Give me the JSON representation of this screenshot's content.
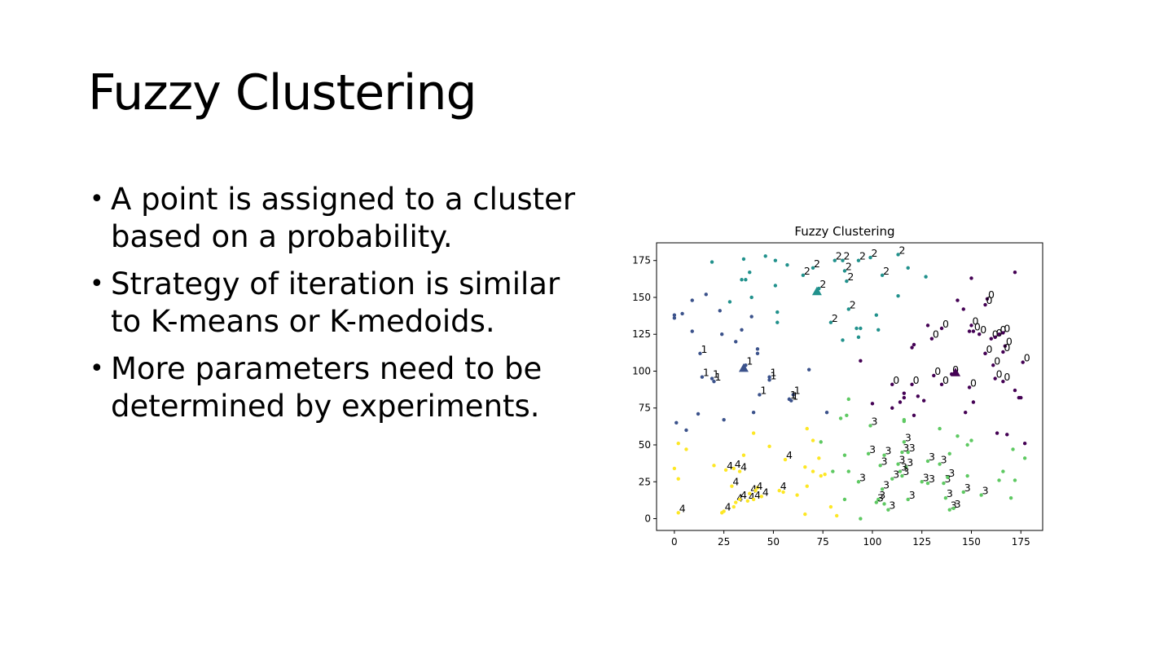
{
  "slide": {
    "title": "Fuzzy Clustering",
    "bullets": [
      "A point is assigned to a cluster based on a probability.",
      "Strategy of iteration is similar to K-means or K-medoids.",
      "More parameters need to be determined by experiments."
    ]
  },
  "chart_data": {
    "type": "scatter",
    "title": "Fuzzy Clustering",
    "xlabel": "",
    "ylabel": "",
    "xlim": [
      -9,
      186
    ],
    "ylim": [
      -8,
      187
    ],
    "xticks": [
      0,
      25,
      50,
      75,
      100,
      125,
      150,
      175
    ],
    "yticks": [
      0,
      25,
      50,
      75,
      100,
      125,
      150,
      175
    ],
    "grid": false,
    "colors": {
      "0": "#440154",
      "1": "#3b528b",
      "2": "#21918c",
      "3": "#5ec962",
      "4": "#fde725"
    },
    "centroids": [
      {
        "cluster": 0,
        "x": 142,
        "y": 99
      },
      {
        "cluster": 1,
        "x": 35,
        "y": 102
      },
      {
        "cluster": 2,
        "x": 72,
        "y": 154
      }
    ],
    "labeled_points": [
      {
        "c": 0,
        "x": 158,
        "y": 149
      },
      {
        "c": 0,
        "x": 157,
        "y": 145
      },
      {
        "c": 0,
        "x": 135,
        "y": 129
      },
      {
        "c": 0,
        "x": 130,
        "y": 122
      },
      {
        "c": 0,
        "x": 150,
        "y": 131
      },
      {
        "c": 0,
        "x": 151,
        "y": 127
      },
      {
        "c": 0,
        "x": 154,
        "y": 125
      },
      {
        "c": 0,
        "x": 160,
        "y": 122
      },
      {
        "c": 0,
        "x": 162,
        "y": 123
      },
      {
        "c": 0,
        "x": 164,
        "y": 125
      },
      {
        "c": 0,
        "x": 166,
        "y": 126
      },
      {
        "c": 0,
        "x": 167,
        "y": 117
      },
      {
        "c": 0,
        "x": 157,
        "y": 112
      },
      {
        "c": 0,
        "x": 166,
        "y": 113
      },
      {
        "c": 0,
        "x": 176,
        "y": 106
      },
      {
        "c": 0,
        "x": 161,
        "y": 104
      },
      {
        "c": 0,
        "x": 131,
        "y": 97
      },
      {
        "c": 0,
        "x": 140,
        "y": 98
      },
      {
        "c": 0,
        "x": 162,
        "y": 95
      },
      {
        "c": 0,
        "x": 166,
        "y": 93
      },
      {
        "c": 0,
        "x": 110,
        "y": 91
      },
      {
        "c": 0,
        "x": 120,
        "y": 91
      },
      {
        "c": 0,
        "x": 135,
        "y": 91
      },
      {
        "c": 0,
        "x": 149,
        "y": 89
      },
      {
        "c": 1,
        "x": 13,
        "y": 112
      },
      {
        "c": 1,
        "x": 14,
        "y": 96
      },
      {
        "c": 1,
        "x": 19,
        "y": 95
      },
      {
        "c": 1,
        "x": 20,
        "y": 93
      },
      {
        "c": 1,
        "x": 36,
        "y": 104
      },
      {
        "c": 1,
        "x": 48,
        "y": 96
      },
      {
        "c": 1,
        "x": 48,
        "y": 94
      },
      {
        "c": 1,
        "x": 60,
        "y": 84
      },
      {
        "c": 1,
        "x": 58,
        "y": 81
      },
      {
        "c": 1,
        "x": 59,
        "y": 80
      },
      {
        "c": 1,
        "x": 43,
        "y": 84
      },
      {
        "c": 2,
        "x": 81,
        "y": 175
      },
      {
        "c": 2,
        "x": 85,
        "y": 175
      },
      {
        "c": 2,
        "x": 93,
        "y": 175
      },
      {
        "c": 2,
        "x": 99,
        "y": 177
      },
      {
        "c": 2,
        "x": 113,
        "y": 179
      },
      {
        "c": 2,
        "x": 70,
        "y": 170
      },
      {
        "c": 2,
        "x": 65,
        "y": 165
      },
      {
        "c": 2,
        "x": 86,
        "y": 168
      },
      {
        "c": 2,
        "x": 87,
        "y": 161
      },
      {
        "c": 2,
        "x": 105,
        "y": 165
      },
      {
        "c": 2,
        "x": 73,
        "y": 156
      },
      {
        "c": 2,
        "x": 88,
        "y": 142
      },
      {
        "c": 2,
        "x": 79,
        "y": 133
      },
      {
        "c": 3,
        "x": 99,
        "y": 63
      },
      {
        "c": 3,
        "x": 116,
        "y": 52
      },
      {
        "c": 3,
        "x": 98,
        "y": 44
      },
      {
        "c": 3,
        "x": 106,
        "y": 43
      },
      {
        "c": 3,
        "x": 115,
        "y": 45
      },
      {
        "c": 3,
        "x": 118,
        "y": 45
      },
      {
        "c": 3,
        "x": 104,
        "y": 36
      },
      {
        "c": 3,
        "x": 113,
        "y": 37
      },
      {
        "c": 3,
        "x": 117,
        "y": 35
      },
      {
        "c": 3,
        "x": 114,
        "y": 32
      },
      {
        "c": 3,
        "x": 115,
        "y": 29
      },
      {
        "c": 3,
        "x": 128,
        "y": 39
      },
      {
        "c": 3,
        "x": 134,
        "y": 37
      },
      {
        "c": 3,
        "x": 110,
        "y": 27
      },
      {
        "c": 3,
        "x": 93,
        "y": 25
      },
      {
        "c": 3,
        "x": 125,
        "y": 25
      },
      {
        "c": 3,
        "x": 128,
        "y": 24
      },
      {
        "c": 3,
        "x": 136,
        "y": 24
      },
      {
        "c": 3,
        "x": 138,
        "y": 28
      },
      {
        "c": 3,
        "x": 105,
        "y": 20
      },
      {
        "c": 3,
        "x": 103,
        "y": 13
      },
      {
        "c": 3,
        "x": 102,
        "y": 11
      },
      {
        "c": 3,
        "x": 108,
        "y": 6
      },
      {
        "c": 3,
        "x": 118,
        "y": 13
      },
      {
        "c": 3,
        "x": 137,
        "y": 14
      },
      {
        "c": 3,
        "x": 146,
        "y": 18
      },
      {
        "c": 3,
        "x": 155,
        "y": 16
      },
      {
        "c": 3,
        "x": 139,
        "y": 6
      },
      {
        "c": 3,
        "x": 141,
        "y": 7
      },
      {
        "c": 4,
        "x": 2,
        "y": 4
      },
      {
        "c": 4,
        "x": 25,
        "y": 5
      },
      {
        "c": 4,
        "x": 26,
        "y": 33
      },
      {
        "c": 4,
        "x": 30,
        "y": 34
      },
      {
        "c": 4,
        "x": 33,
        "y": 32
      },
      {
        "c": 4,
        "x": 29,
        "y": 22
      },
      {
        "c": 4,
        "x": 56,
        "y": 40
      },
      {
        "c": 4,
        "x": 38,
        "y": 17
      },
      {
        "c": 4,
        "x": 41,
        "y": 19
      },
      {
        "c": 4,
        "x": 53,
        "y": 19
      },
      {
        "c": 4,
        "x": 31,
        "y": 11
      },
      {
        "c": 4,
        "x": 33,
        "y": 13
      },
      {
        "c": 4,
        "x": 37,
        "y": 12
      },
      {
        "c": 4,
        "x": 40,
        "y": 13
      },
      {
        "c": 4,
        "x": 44,
        "y": 15
      }
    ],
    "unlabeled_points": [
      {
        "c": 0,
        "x": 150,
        "y": 163
      },
      {
        "c": 0,
        "x": 172,
        "y": 167
      },
      {
        "c": 0,
        "x": 143,
        "y": 148
      },
      {
        "c": 0,
        "x": 146,
        "y": 142
      },
      {
        "c": 0,
        "x": 128,
        "y": 131
      },
      {
        "c": 0,
        "x": 149,
        "y": 127
      },
      {
        "c": 0,
        "x": 121,
        "y": 118
      },
      {
        "c": 0,
        "x": 120,
        "y": 116
      },
      {
        "c": 0,
        "x": 157,
        "y": 112
      },
      {
        "c": 0,
        "x": 94,
        "y": 107
      },
      {
        "c": 0,
        "x": 116,
        "y": 85
      },
      {
        "c": 0,
        "x": 116,
        "y": 82
      },
      {
        "c": 0,
        "x": 123,
        "y": 83
      },
      {
        "c": 0,
        "x": 126,
        "y": 80
      },
      {
        "c": 0,
        "x": 114,
        "y": 79
      },
      {
        "c": 0,
        "x": 100,
        "y": 78
      },
      {
        "c": 0,
        "x": 110,
        "y": 75
      },
      {
        "c": 0,
        "x": 172,
        "y": 87
      },
      {
        "c": 0,
        "x": 174,
        "y": 82
      },
      {
        "c": 0,
        "x": 175,
        "y": 82
      },
      {
        "c": 0,
        "x": 151,
        "y": 79
      },
      {
        "c": 0,
        "x": 121,
        "y": 70
      },
      {
        "c": 0,
        "x": 147,
        "y": 72
      },
      {
        "c": 0,
        "x": 163,
        "y": 58
      },
      {
        "c": 0,
        "x": 168,
        "y": 57
      },
      {
        "c": 0,
        "x": 177,
        "y": 51
      },
      {
        "c": 1,
        "x": 0,
        "y": 138
      },
      {
        "c": 1,
        "x": 0,
        "y": 136
      },
      {
        "c": 1,
        "x": 4,
        "y": 139
      },
      {
        "c": 1,
        "x": 9,
        "y": 148
      },
      {
        "c": 1,
        "x": 16,
        "y": 152
      },
      {
        "c": 1,
        "x": 9,
        "y": 127
      },
      {
        "c": 1,
        "x": 23,
        "y": 141
      },
      {
        "c": 1,
        "x": 24,
        "y": 125
      },
      {
        "c": 1,
        "x": 31,
        "y": 120
      },
      {
        "c": 1,
        "x": 34,
        "y": 128
      },
      {
        "c": 1,
        "x": 39,
        "y": 137
      },
      {
        "c": 1,
        "x": 42,
        "y": 115
      },
      {
        "c": 1,
        "x": 42,
        "y": 112
      },
      {
        "c": 1,
        "x": 68,
        "y": 101
      },
      {
        "c": 1,
        "x": 40,
        "y": 72
      },
      {
        "c": 1,
        "x": 77,
        "y": 72
      },
      {
        "c": 1,
        "x": 12,
        "y": 71
      },
      {
        "c": 1,
        "x": 25,
        "y": 67
      },
      {
        "c": 1,
        "x": 1,
        "y": 65
      },
      {
        "c": 1,
        "x": 6,
        "y": 60
      },
      {
        "c": 2,
        "x": 19,
        "y": 174
      },
      {
        "c": 2,
        "x": 35,
        "y": 176
      },
      {
        "c": 2,
        "x": 46,
        "y": 178
      },
      {
        "c": 2,
        "x": 51,
        "y": 175
      },
      {
        "c": 2,
        "x": 57,
        "y": 172
      },
      {
        "c": 2,
        "x": 38,
        "y": 167
      },
      {
        "c": 2,
        "x": 34,
        "y": 162
      },
      {
        "c": 2,
        "x": 36,
        "y": 162
      },
      {
        "c": 2,
        "x": 51,
        "y": 158
      },
      {
        "c": 2,
        "x": 118,
        "y": 170
      },
      {
        "c": 2,
        "x": 127,
        "y": 164
      },
      {
        "c": 2,
        "x": 28,
        "y": 147
      },
      {
        "c": 2,
        "x": 39,
        "y": 150
      },
      {
        "c": 2,
        "x": 113,
        "y": 151
      },
      {
        "c": 2,
        "x": 52,
        "y": 140
      },
      {
        "c": 2,
        "x": 52,
        "y": 133
      },
      {
        "c": 2,
        "x": 102,
        "y": 138
      },
      {
        "c": 2,
        "x": 92,
        "y": 129
      },
      {
        "c": 2,
        "x": 94,
        "y": 129
      },
      {
        "c": 2,
        "x": 103,
        "y": 128
      },
      {
        "c": 2,
        "x": 85,
        "y": 121
      },
      {
        "c": 2,
        "x": 93,
        "y": 123
      },
      {
        "c": 3,
        "x": 88,
        "y": 81
      },
      {
        "c": 3,
        "x": 87,
        "y": 70
      },
      {
        "c": 3,
        "x": 84,
        "y": 68
      },
      {
        "c": 3,
        "x": 116,
        "y": 67
      },
      {
        "c": 3,
        "x": 116,
        "y": 66
      },
      {
        "c": 3,
        "x": 134,
        "y": 61
      },
      {
        "c": 3,
        "x": 143,
        "y": 56
      },
      {
        "c": 3,
        "x": 150,
        "y": 53
      },
      {
        "c": 3,
        "x": 148,
        "y": 50
      },
      {
        "c": 3,
        "x": 139,
        "y": 44
      },
      {
        "c": 3,
        "x": 171,
        "y": 47
      },
      {
        "c": 3,
        "x": 177,
        "y": 41
      },
      {
        "c": 3,
        "x": 74,
        "y": 52
      },
      {
        "c": 3,
        "x": 86,
        "y": 43
      },
      {
        "c": 3,
        "x": 80,
        "y": 32
      },
      {
        "c": 3,
        "x": 88,
        "y": 32
      },
      {
        "c": 3,
        "x": 166,
        "y": 32
      },
      {
        "c": 3,
        "x": 148,
        "y": 29
      },
      {
        "c": 3,
        "x": 164,
        "y": 26
      },
      {
        "c": 3,
        "x": 172,
        "y": 26
      },
      {
        "c": 3,
        "x": 86,
        "y": 13
      },
      {
        "c": 3,
        "x": 170,
        "y": 14
      },
      {
        "c": 3,
        "x": 94,
        "y": 0
      },
      {
        "c": 3,
        "x": 106,
        "y": 10
      },
      {
        "c": 4,
        "x": 2,
        "y": 51
      },
      {
        "c": 4,
        "x": 6,
        "y": 47
      },
      {
        "c": 4,
        "x": 48,
        "y": 49
      },
      {
        "c": 4,
        "x": 40,
        "y": 58
      },
      {
        "c": 4,
        "x": 67,
        "y": 61
      },
      {
        "c": 4,
        "x": 70,
        "y": 53
      },
      {
        "c": 4,
        "x": 73,
        "y": 41
      },
      {
        "c": 4,
        "x": 35,
        "y": 43
      },
      {
        "c": 4,
        "x": 20,
        "y": 36
      },
      {
        "c": 4,
        "x": 0,
        "y": 34
      },
      {
        "c": 4,
        "x": 2,
        "y": 27
      },
      {
        "c": 4,
        "x": 66,
        "y": 35
      },
      {
        "c": 4,
        "x": 70,
        "y": 32
      },
      {
        "c": 4,
        "x": 74,
        "y": 29
      },
      {
        "c": 4,
        "x": 76,
        "y": 30
      },
      {
        "c": 4,
        "x": 67,
        "y": 22
      },
      {
        "c": 4,
        "x": 62,
        "y": 16
      },
      {
        "c": 4,
        "x": 42,
        "y": 21
      },
      {
        "c": 4,
        "x": 55,
        "y": 18
      },
      {
        "c": 4,
        "x": 79,
        "y": 8
      },
      {
        "c": 4,
        "x": 82,
        "y": 2
      },
      {
        "c": 4,
        "x": 66,
        "y": 3
      },
      {
        "c": 4,
        "x": 24,
        "y": 4
      },
      {
        "c": 4,
        "x": 30,
        "y": 8
      }
    ]
  }
}
